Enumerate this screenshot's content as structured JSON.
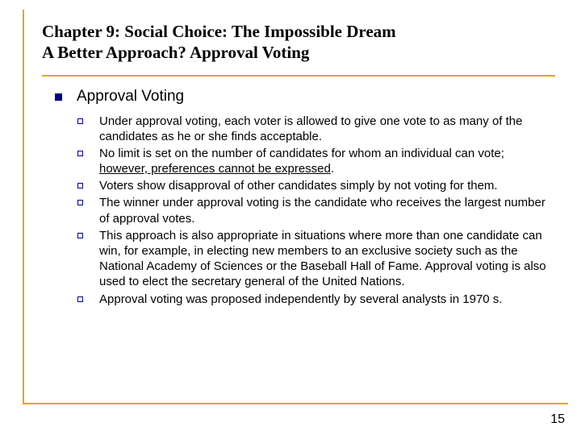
{
  "colors": {
    "accent": "#d9a62e",
    "bullet": "#000080",
    "text": "#000000",
    "background": "#ffffff"
  },
  "title": {
    "line1": "Chapter 9:  Social Choice: The Impossible Dream",
    "line2": "A Better Approach?  Approval Voting",
    "font_family": "Times New Roman",
    "font_size_pt": 16,
    "font_weight": "bold"
  },
  "section": {
    "heading": "Approval Voting",
    "heading_fontsize": 19,
    "body_fontsize": 15,
    "items": [
      {
        "text": "Under approval voting, each voter is allowed to give one vote to as many of the candidates as he or she finds acceptable."
      },
      {
        "text_pre": "No limit is set on the number of candidates for whom an individual can vote; ",
        "text_underlined": "however, preferences cannot be expressed",
        "text_post": "."
      },
      {
        "text": "Voters show disapproval of other candidates simply by not voting for them."
      },
      {
        "text": "The winner under approval voting is the candidate who receives the largest number of approval votes."
      },
      {
        "text": "This approach is also appropriate in situations where more than one candidate can win, for example, in electing new members to an exclusive society such as the National Academy of Sciences or the Baseball Hall of Fame.  Approval voting is also used to elect the secretary general of the United Nations."
      },
      {
        "text": "Approval voting was proposed independently by several analysts in 1970 s."
      }
    ]
  },
  "page_number": "15"
}
